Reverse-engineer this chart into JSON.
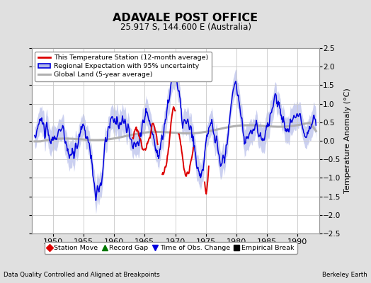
{
  "title": "ADAVALE POST OFFICE",
  "subtitle": "25.917 S, 144.600 E (Australia)",
  "ylabel": "Temperature Anomaly (°C)",
  "xlabel_left": "Data Quality Controlled and Aligned at Breakpoints",
  "xlabel_right": "Berkeley Earth",
  "ylim": [
    -2.5,
    2.5
  ],
  "xlim": [
    1946.5,
    1993.5
  ],
  "xticks": [
    1950,
    1955,
    1960,
    1965,
    1970,
    1975,
    1980,
    1985,
    1990
  ],
  "yticks": [
    -2.5,
    -2,
    -1.5,
    -1,
    -0.5,
    0,
    0.5,
    1,
    1.5,
    2,
    2.5
  ],
  "bg_color": "#e0e0e0",
  "plot_bg_color": "#ffffff",
  "grid_color": "#c8c8c8",
  "blue_line_color": "#0000dd",
  "blue_fill_color": "#b0b8e8",
  "red_line_color": "#dd0000",
  "gray_line_color": "#b0b0b0",
  "legend_items": [
    {
      "label": "This Temperature Station (12-month average)",
      "color": "#dd0000",
      "lw": 2.0
    },
    {
      "label": "Regional Expectation with 95% uncertainty",
      "color": "#0000dd",
      "lw": 2.0
    },
    {
      "label": "Global Land (5-year average)",
      "color": "#b0b0b0",
      "lw": 2.5
    }
  ],
  "bottom_legend": [
    {
      "label": "Station Move",
      "marker": "D",
      "color": "#dd0000"
    },
    {
      "label": "Record Gap",
      "marker": "^",
      "color": "#007700"
    },
    {
      "label": "Time of Obs. Change",
      "marker": "v",
      "color": "#0000dd"
    },
    {
      "label": "Empirical Break",
      "marker": "s",
      "color": "#000000"
    }
  ]
}
